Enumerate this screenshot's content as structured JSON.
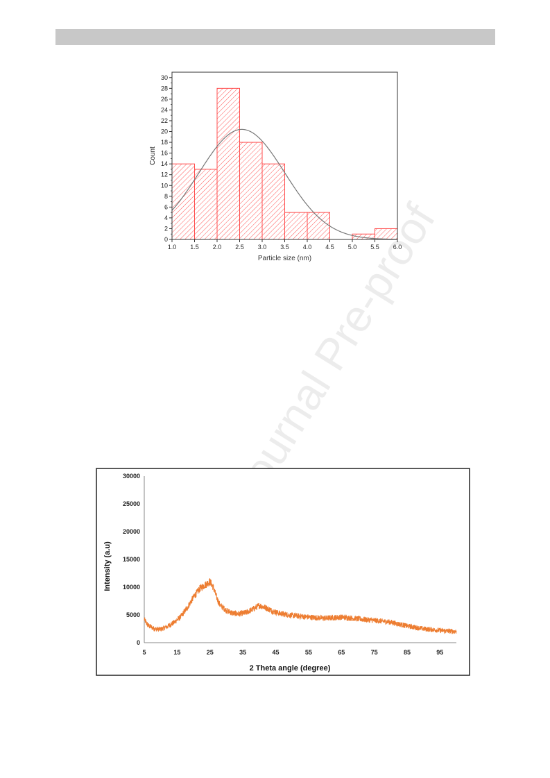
{
  "watermark": "Journal Pre-proof",
  "chart_data": [
    {
      "type": "bar",
      "title": "",
      "xlabel": "Particle size (nm)",
      "ylabel": "Count",
      "bin_edges": [
        1.0,
        1.5,
        2.0,
        2.5,
        3.0,
        3.5,
        4.0,
        4.5,
        5.0,
        5.5,
        6.0
      ],
      "values": [
        14,
        13,
        28,
        18,
        14,
        5,
        5,
        0,
        1,
        2
      ],
      "xlim": [
        1.0,
        6.0
      ],
      "ylim": [
        0,
        31
      ],
      "xticks": [
        "1.0",
        "1.5",
        "2.0",
        "2.5",
        "3.0",
        "3.5",
        "4.0",
        "4.5",
        "5.0",
        "5.5",
        "6.0"
      ],
      "yticks": [
        "0",
        "2",
        "4",
        "6",
        "8",
        "10",
        "12",
        "14",
        "16",
        "18",
        "20",
        "22",
        "24",
        "26",
        "28",
        "30"
      ],
      "fit": {
        "type": "normal",
        "mean": 2.55,
        "sd": 0.95,
        "peak": 20.4
      },
      "bar_color": "#ff4d4d",
      "bar_fill": "hatched",
      "fit_color": "#777777"
    },
    {
      "type": "line",
      "title": "",
      "xlabel": "2 Theta angle (degree)",
      "ylabel": "Intensity (a.u)",
      "xlim": [
        5,
        100
      ],
      "ylim": [
        0,
        30000
      ],
      "xticks": [
        "5",
        "15",
        "25",
        "35",
        "45",
        "55",
        "65",
        "75",
        "85",
        "95"
      ],
      "yticks": [
        "0",
        "5000",
        "10000",
        "15000",
        "20000",
        "25000",
        "30000"
      ],
      "series_color": "#ed7d31",
      "envelope": [
        [
          5,
          4200
        ],
        [
          6,
          3200
        ],
        [
          8,
          2500
        ],
        [
          10,
          2400
        ],
        [
          12,
          2900
        ],
        [
          14,
          3600
        ],
        [
          16,
          4600
        ],
        [
          18,
          6200
        ],
        [
          20,
          8200
        ],
        [
          22,
          9800
        ],
        [
          24,
          10600
        ],
        [
          25,
          11000
        ],
        [
          26,
          10000
        ],
        [
          27,
          8200
        ],
        [
          28,
          6800
        ],
        [
          30,
          5800
        ],
        [
          32,
          5300
        ],
        [
          34,
          5200
        ],
        [
          36,
          5400
        ],
        [
          38,
          6000
        ],
        [
          40,
          6700
        ],
        [
          42,
          6300
        ],
        [
          44,
          5700
        ],
        [
          46,
          5300
        ],
        [
          50,
          4900
        ],
        [
          55,
          4600
        ],
        [
          60,
          4400
        ],
        [
          65,
          4600
        ],
        [
          70,
          4300
        ],
        [
          75,
          4000
        ],
        [
          80,
          3700
        ],
        [
          85,
          3000
        ],
        [
          90,
          2500
        ],
        [
          95,
          2200
        ],
        [
          100,
          2000
        ]
      ],
      "noise_amplitude": 700
    }
  ]
}
